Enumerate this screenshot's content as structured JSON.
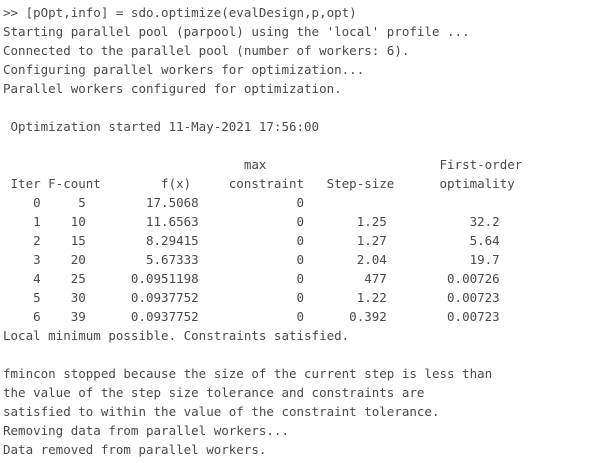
{
  "colors": {
    "background": "#ffffff",
    "text": "#4a4a4a"
  },
  "console": {
    "prompt": ">>",
    "command": "[pOpt,info] = sdo.optimize(evalDesign,p,opt)",
    "lines": [
      ">> [pOpt,info] = sdo.optimize(evalDesign,p,opt)",
      "Starting parallel pool (parpool) using the 'local' profile ...",
      "Connected to the parallel pool (number of workers: 6).",
      "Configuring parallel workers for optimization...",
      "Parallel workers configured for optimization.",
      "",
      " Optimization started 11-May-2021 17:56:00",
      "",
      "                                max                       First-order",
      " Iter F-count        f(x)     constraint   Step-size      optimality",
      "    0     5        17.5068             0",
      "    1    10        11.6563             0       1.25           32.2",
      "    2    15        8.29415             0       1.27           5.64",
      "    3    20        5.67333             0       2.04           19.7",
      "    4    25      0.0951198             0        477        0.00726",
      "    5    30      0.0937752             0       1.22        0.00723",
      "    6    39      0.0937752             0      0.392        0.00723",
      "Local minimum possible. Constraints satisfied.",
      "",
      "fmincon stopped because the size of the current step is less than",
      "the value of the step size tolerance and constraints are",
      "satisfied to within the value of the constraint tolerance.",
      "Removing data from parallel workers...",
      "Data removed from parallel workers."
    ]
  },
  "optimization": {
    "started_message": "Optimization started 11-May-2021 17:56:00",
    "result_message": "Local minimum possible. Constraints satisfied.",
    "table": {
      "header_row_1": [
        "",
        "",
        "",
        "max",
        "",
        "First-order"
      ],
      "header_row_2": [
        "Iter",
        "F-count",
        "f(x)",
        "constraint",
        "Step-size",
        "optimality"
      ],
      "rows": [
        [
          "0",
          "5",
          "17.5068",
          "0",
          "",
          ""
        ],
        [
          "1",
          "10",
          "11.6563",
          "0",
          "1.25",
          "32.2"
        ],
        [
          "2",
          "15",
          "8.29415",
          "0",
          "1.27",
          "5.64"
        ],
        [
          "3",
          "20",
          "5.67333",
          "0",
          "2.04",
          "19.7"
        ],
        [
          "4",
          "25",
          "0.0951198",
          "0",
          "477",
          "0.00726"
        ],
        [
          "5",
          "30",
          "0.0937752",
          "0",
          "1.22",
          "0.00723"
        ],
        [
          "6",
          "39",
          "0.0937752",
          "0",
          "0.392",
          "0.00723"
        ]
      ]
    },
    "parallel_pool": {
      "profile": "local",
      "workers": "6"
    }
  }
}
